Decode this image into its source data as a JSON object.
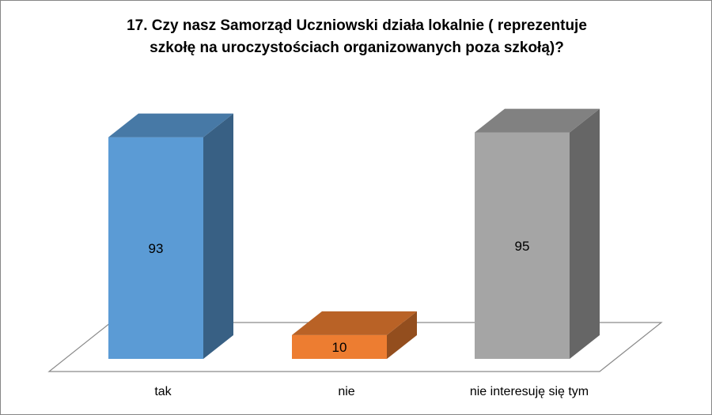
{
  "chart_data": {
    "type": "bar",
    "title_lines": [
      "17. Czy nasz Samorząd Uczniowski działa lokalnie ( reprezentuje",
      "szkołę na uroczystościach organizowanych poza szkołą)?"
    ],
    "categories": [
      "tak",
      "nie",
      "nie interesuję się tym"
    ],
    "values": [
      93,
      10,
      95
    ],
    "value_labels": [
      "93",
      "10",
      "95"
    ],
    "colors": [
      "#5B9BD5",
      "#ED7D31",
      "#A5A5A5"
    ],
    "legend": "none",
    "grid": false
  }
}
